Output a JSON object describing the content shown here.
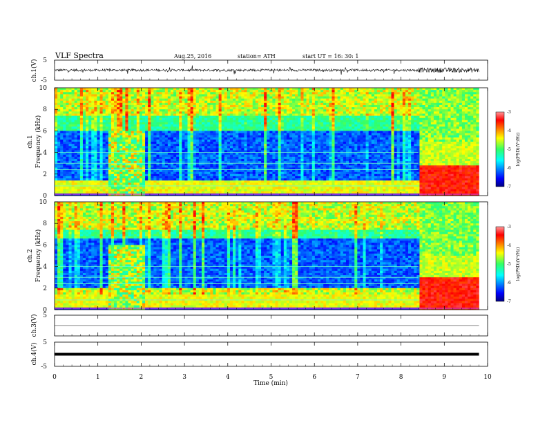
{
  "header": {
    "title": "VLF  Spectra",
    "date": "Aug.25, 2016",
    "station": "station= ATH",
    "start": "start  UT  =    16: 30: 1"
  },
  "chart_data": [
    {
      "type": "line",
      "name": "ch1-waveform",
      "ylabel": "ch.1(V)",
      "ylim": [
        -5,
        5
      ],
      "yticks": [
        "5",
        "-5"
      ],
      "xlim": [
        0,
        10
      ],
      "summary": {
        "baseline": 0.0,
        "noise_amplitude_before_8.4": 0.6,
        "noise_amplitude_after_8.4": 1.2,
        "end_minute": 9.8
      }
    },
    {
      "type": "heatmap",
      "name": "ch1-spectrogram",
      "ylabel": "ch.1\nFrequency  (kHz)",
      "xlim": [
        0,
        10
      ],
      "ylim": [
        0,
        10
      ],
      "yticks": [
        "0",
        "2",
        "4",
        "6",
        "8",
        "10"
      ],
      "colorbar": {
        "label": "log(PSD)(V²/Hz)",
        "range": [
          -7,
          -3
        ],
        "ticks": [
          "-3",
          "-4",
          "-5",
          "-6",
          "-7"
        ]
      },
      "data_end_minute": 9.8,
      "features": {
        "event_start_minute": 1.25,
        "event_end_minute": 2.1,
        "transition_minute": 8.4,
        "dark_band_kHz": [
          1.5,
          6.0
        ],
        "strong_low_band_after_transition_kHz": [
          0,
          2.8
        ]
      }
    },
    {
      "type": "heatmap",
      "name": "ch2-spectrogram",
      "ylabel": "ch.2\nFrequency  (kHz)",
      "xlim": [
        0,
        10
      ],
      "ylim": [
        0,
        10
      ],
      "yticks": [
        "0",
        "2",
        "4",
        "6",
        "8",
        "10"
      ],
      "colorbar": {
        "label": "log(PSD)(V²/Hz)",
        "range": [
          -7,
          -3
        ],
        "ticks": [
          "-3",
          "-4",
          "-5",
          "-6",
          "-7"
        ]
      },
      "data_end_minute": 9.8,
      "features": {
        "event_start_minute": 1.25,
        "event_end_minute": 2.1,
        "transition_minute": 8.4,
        "dark_band_kHz": [
          2.0,
          6.5
        ],
        "strong_low_band_after_transition_kHz": [
          0,
          3.0
        ]
      }
    },
    {
      "type": "line",
      "name": "ch3-waveform",
      "ylabel": "ch.3(V)",
      "ylim": [
        -5,
        5
      ],
      "yticks": [
        "5"
      ],
      "xlim": [
        0,
        10
      ],
      "summary": {
        "baseline": 0.0,
        "end_minute": 9.8
      }
    },
    {
      "type": "line",
      "name": "ch4-waveform",
      "ylabel": "ch.4(V)",
      "ylim": [
        -5,
        5
      ],
      "yticks": [
        "5",
        "-5"
      ],
      "xlim": [
        0,
        10
      ],
      "xticks": [
        "0",
        "1",
        "2",
        "3",
        "4",
        "5",
        "6",
        "7",
        "8",
        "9",
        "10"
      ],
      "xlabel": "Time  (min)",
      "summary": {
        "baseline": 0.0,
        "thick_trace": true,
        "end_minute": 9.8
      }
    }
  ]
}
